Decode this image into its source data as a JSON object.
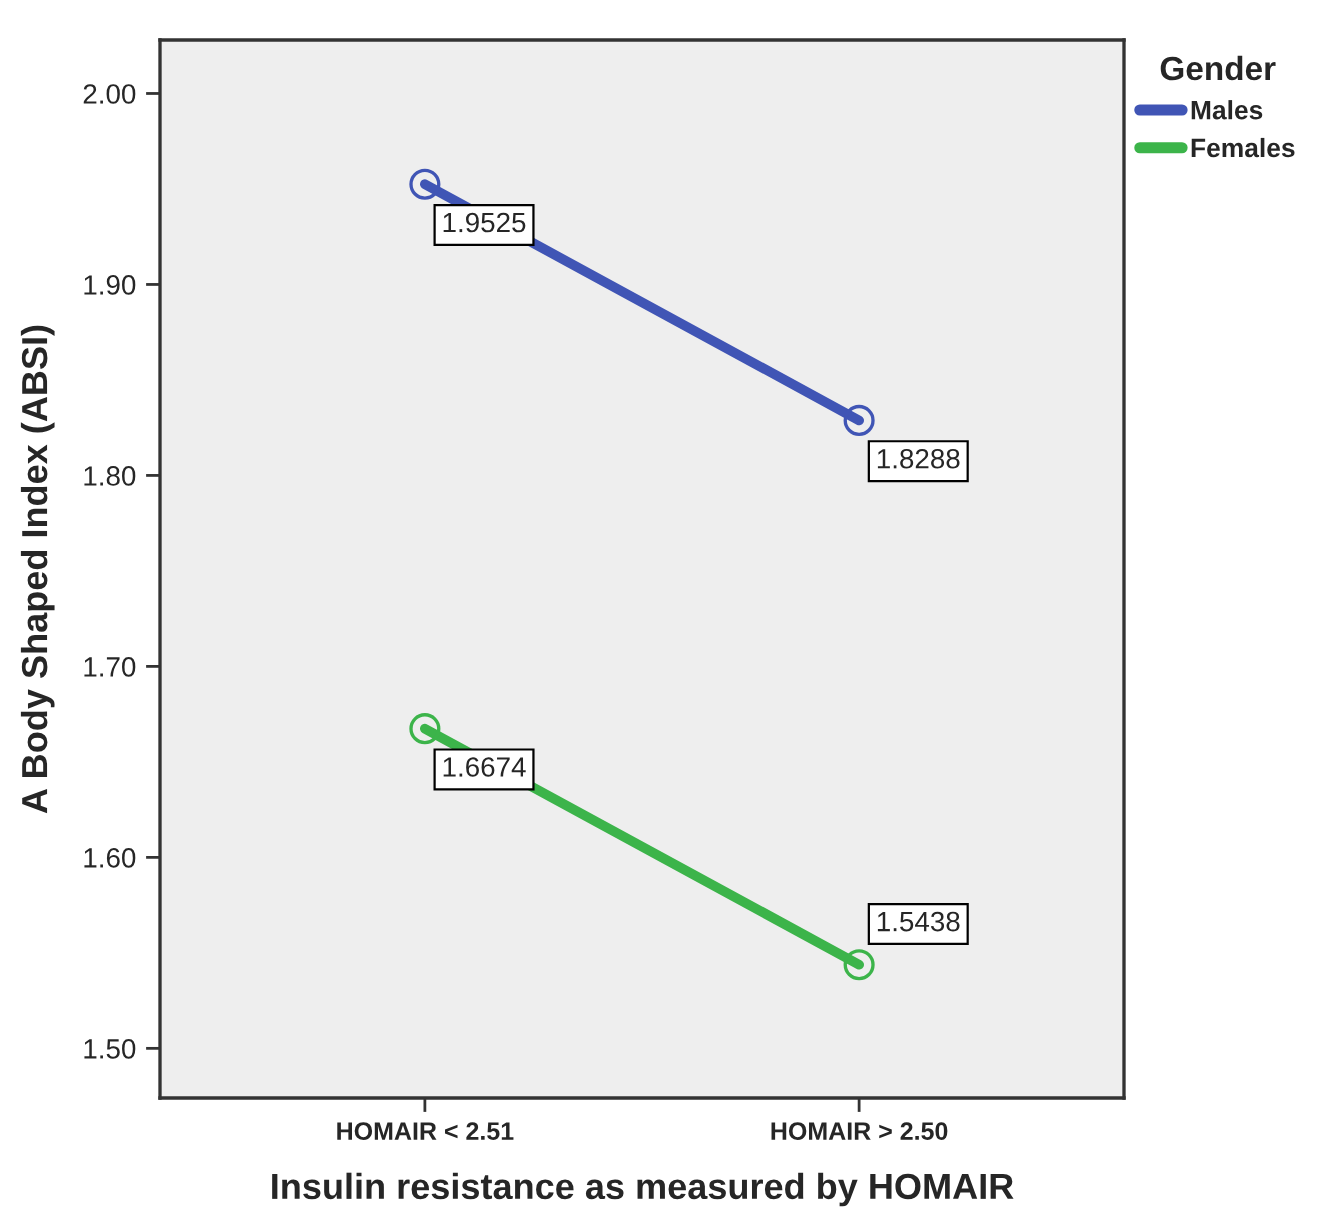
{
  "chart_data": {
    "type": "line",
    "xlabel": "Insulin resistance as measured by HOMAIR",
    "ylabel": "A Body Shaped Index (ABSI)",
    "legend_title": "Gender",
    "categories": [
      "HOMAIR < 2.51",
      "HOMAIR > 2.50"
    ],
    "series": [
      {
        "name": "Males",
        "color": "#4055b5",
        "values": [
          1.9525,
          1.8288
        ]
      },
      {
        "name": "Females",
        "color": "#3cb44a",
        "values": [
          1.6674,
          1.5438
        ]
      }
    ],
    "ylim": [
      1.474,
      2.028
    ],
    "yticks": [
      {
        "value": 1.5,
        "label": "1.50"
      },
      {
        "value": 1.6,
        "label": "1.60"
      },
      {
        "value": 1.7,
        "label": "1.70"
      },
      {
        "value": 1.8,
        "label": "1.80"
      },
      {
        "value": 1.9,
        "label": "1.90"
      },
      {
        "value": 2.0,
        "label": "2.00"
      }
    ],
    "grid": false,
    "legend": "top right",
    "marker": "circle",
    "line_style": "solid",
    "data_labels": true
  }
}
